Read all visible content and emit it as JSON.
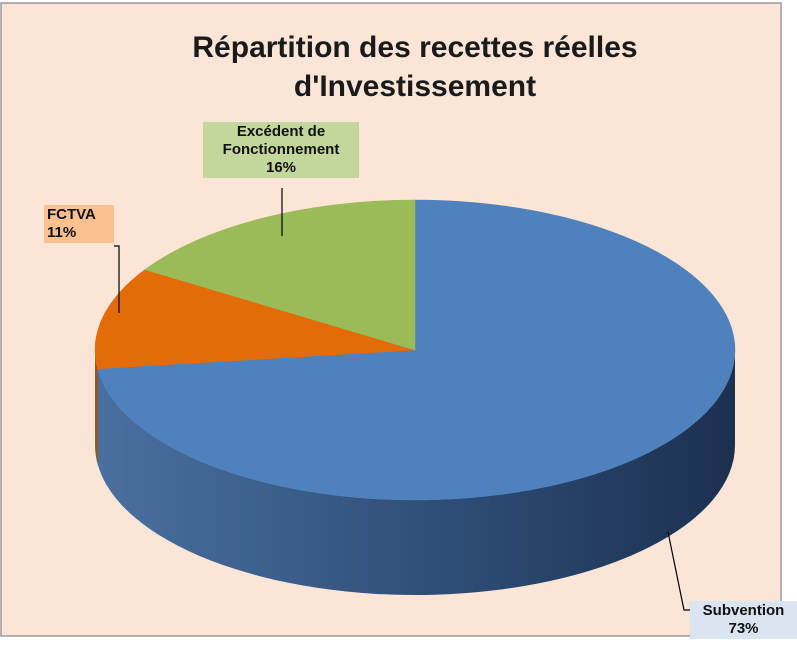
{
  "chart_data": {
    "type": "pie",
    "title": "Répartition des recettes réelles d'Investissement",
    "categories": [
      "Subvention",
      "FCTVA",
      "Excédent de Fonctionnement"
    ],
    "values": [
      73,
      11,
      16
    ],
    "value_labels": [
      "73%",
      "11%",
      "16%"
    ],
    "colors": [
      "#4f81bd",
      "#e36c09",
      "#9bbb59"
    ],
    "three_d": true
  }
}
